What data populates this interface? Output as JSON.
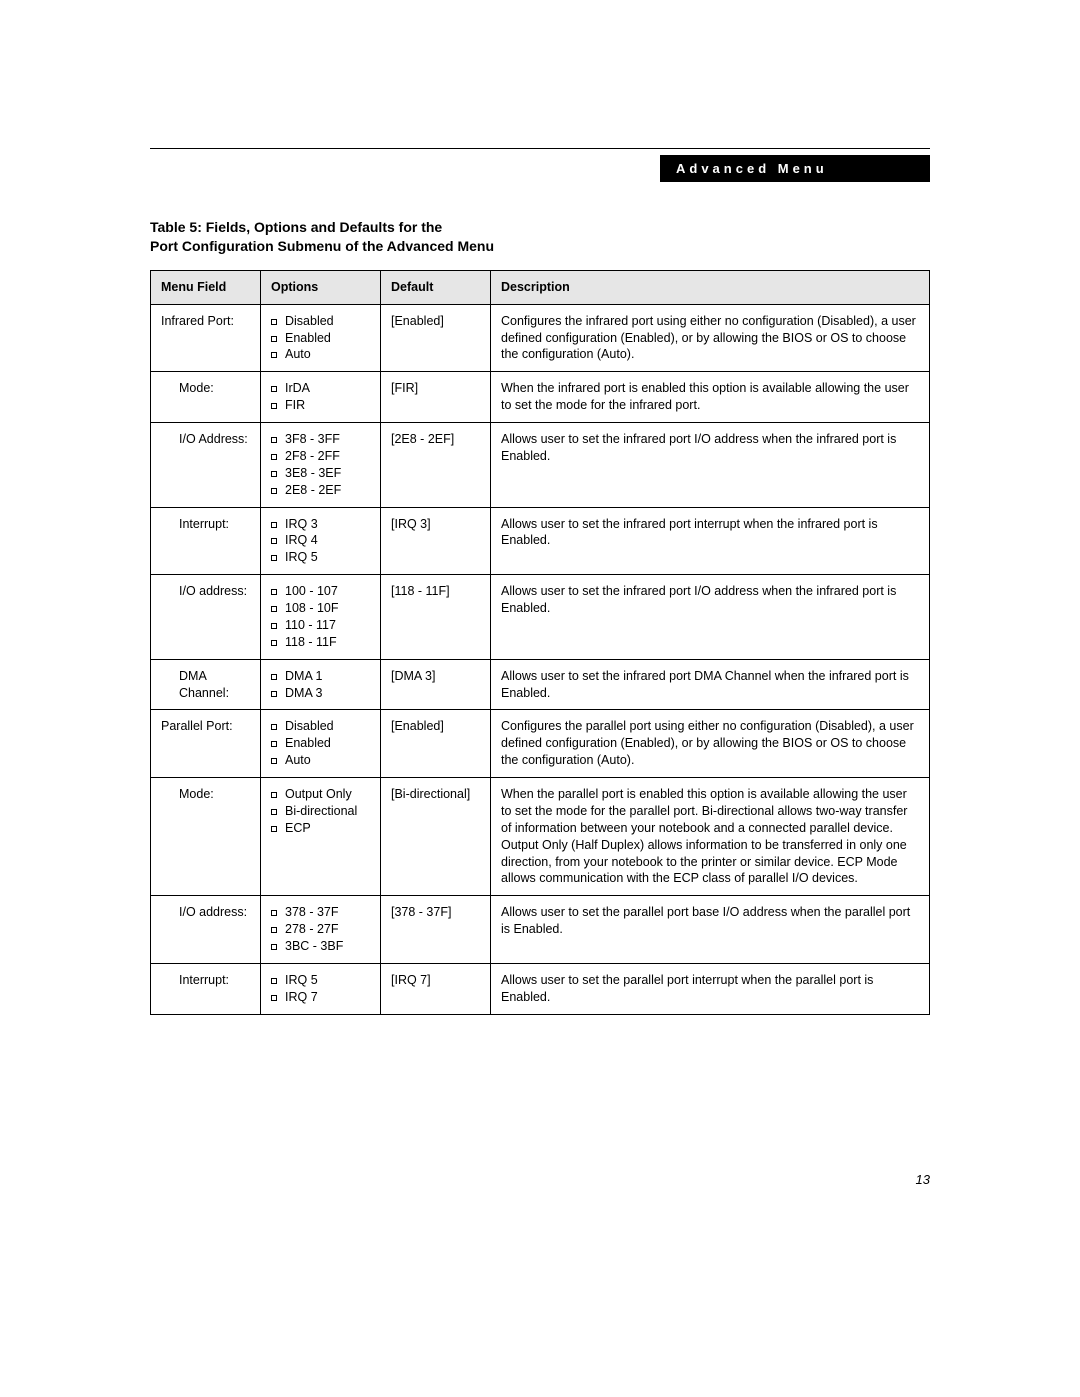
{
  "header": {
    "label": "Advanced Menu"
  },
  "title": {
    "line1": "Table 5: Fields, Options and Defaults for the",
    "line2": "Port Configuration Submenu of the Advanced Menu"
  },
  "columns": {
    "field": "Menu Field",
    "options": "Options",
    "default": "Default",
    "description": "Description"
  },
  "column_widths": {
    "field": 110,
    "options": 120,
    "default": 110
  },
  "rows": [
    {
      "indent": false,
      "field": "Infrared Port:",
      "options": [
        "Disabled",
        "Enabled",
        "Auto"
      ],
      "default": "[Enabled]",
      "description": "Configures the infrared port using either no configuration (Disabled), a user defined configuration (Enabled), or by allowing the BIOS or OS to choose the configuration (Auto)."
    },
    {
      "indent": true,
      "field": "Mode:",
      "options": [
        "IrDA",
        "FIR"
      ],
      "default": "[FIR]",
      "description": "When the infrared port is enabled this option is available allowing the user to set the mode for the infrared port."
    },
    {
      "indent": true,
      "field": "I/O Address:",
      "options": [
        "3F8 - 3FF",
        "2F8 - 2FF",
        "3E8 - 3EF",
        "2E8 - 2EF"
      ],
      "default": "[2E8 - 2EF]",
      "description": "Allows user to set the infrared port I/O address when the infrared port is Enabled."
    },
    {
      "indent": true,
      "field": "Interrupt:",
      "options": [
        "IRQ 3",
        "IRQ 4",
        "IRQ 5"
      ],
      "default": "[IRQ 3]",
      "description": "Allows user to set the infrared port interrupt when the infrared port is Enabled."
    },
    {
      "indent": true,
      "field": "I/O address:",
      "options": [
        "100 - 107",
        "108 - 10F",
        "110 - 117",
        "118 - 11F"
      ],
      "default": "[118 - 11F]",
      "description": "Allows user to set the infrared port I/O address when the infrared port is Enabled."
    },
    {
      "indent": true,
      "field": "DMA Channel:",
      "options": [
        "DMA 1",
        "DMA 3"
      ],
      "default": "[DMA 3]",
      "description": "Allows user to set the infrared port DMA Channel when the infrared port is Enabled."
    },
    {
      "indent": false,
      "field": "Parallel Port:",
      "options": [
        "Disabled",
        "Enabled",
        "Auto"
      ],
      "default": "[Enabled]",
      "description": "Configures the parallel port using either no configuration (Disabled), a user defined configuration (Enabled), or by allowing the BIOS or OS to choose the configuration (Auto)."
    },
    {
      "indent": true,
      "field": "Mode:",
      "options": [
        "Output Only",
        "Bi-directional",
        "ECP"
      ],
      "default": "[Bi-directional]",
      "description": "When the parallel port is enabled this option is available allowing the user to set the mode for the parallel port. Bi-directional allows two-way transfer of information between your notebook and a connected parallel device. Output Only (Half Duplex) allows information to be transferred in only one direction, from your notebook to the printer or similar device. ECP Mode allows communication with the ECP class of parallel I/O devices."
    },
    {
      "indent": true,
      "field": "I/O address:",
      "options": [
        "378 - 37F",
        "278 - 27F",
        "3BC - 3BF"
      ],
      "default": "[378 - 37F]",
      "description": "Allows user to set the parallel port base I/O address when the parallel port is Enabled."
    },
    {
      "indent": true,
      "field": "Interrupt:",
      "options": [
        "IRQ 5",
        "IRQ 7"
      ],
      "default": "[IRQ 7]",
      "description": "Allows user to set the parallel port interrupt when the parallel port is Enabled."
    }
  ],
  "page_number": "13",
  "style": {
    "page_bg": "#ffffff",
    "text_color": "#000000",
    "header_bg": "#000000",
    "header_fg": "#ffffff",
    "thead_bg": "#e6e6e6",
    "border_color": "#000000",
    "font_family": "Arial, Helvetica, sans-serif",
    "body_font_size": 12.5,
    "title_font_size": 14
  }
}
